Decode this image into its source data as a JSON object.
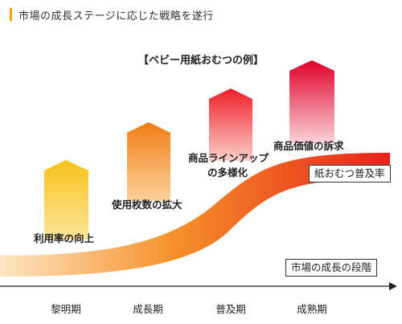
{
  "header": {
    "title": "市場の成長ステージに応じた戦略を遂行"
  },
  "diagram": {
    "example_title": "【ベビー用紙おむつの例】",
    "stages": [
      {
        "label": "黎明期",
        "strategy": "利用率の向上",
        "color_top": "#f7c21a",
        "color_bottom": "#fde59a"
      },
      {
        "label": "成長期",
        "strategy": "使用枚数の拡大",
        "color_top": "#f07c14",
        "color_bottom": "#fbd29c"
      },
      {
        "label": "普及期",
        "strategy_line1": "商品ラインアップ",
        "strategy_line2": "の多様化",
        "color_top": "#ef1e2a",
        "color_bottom": "#fbd0c8"
      },
      {
        "label": "成熟期",
        "strategy": "商品価値の訴求",
        "color_top": "#e0002a",
        "color_bottom": "#fbd4d8"
      }
    ],
    "curve_label": "紙おむつ普及率",
    "axis_label": "市場の成長の段階",
    "colors": {
      "curve_start": "#fde6c2",
      "curve_mid": "#f5902a",
      "curve_end": "#e8201a",
      "accent": "#f0a500"
    }
  }
}
